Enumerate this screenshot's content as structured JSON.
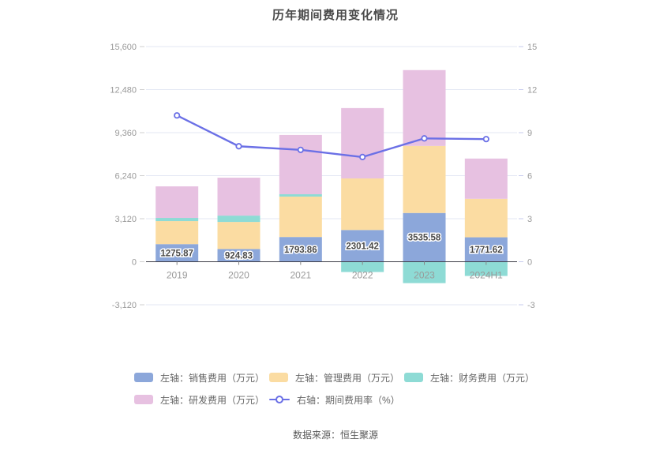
{
  "title": "历年期间费用变化情况",
  "source": "数据来源：恒生聚源",
  "colors": {
    "sales_bar": "#8ca7da",
    "admin_bar": "#fbdca2",
    "finance_bar": "#8edbd5",
    "rnd_bar": "#e7c1e1",
    "rate_line": "#6b70e6",
    "grid_line": "#e3e7f3",
    "zero_axis": "#3d3d47",
    "axis_text": "#999999",
    "bar_label_text": "#4a4a4a",
    "title_text": "#4a4a4a",
    "legend_text": "#666666",
    "footer_text": "#595959"
  },
  "chart_data": {
    "type": "bar",
    "title": "历年期间费用变化情况",
    "categories": [
      "2019",
      "2020",
      "2021",
      "2022",
      "2023",
      "2024H1"
    ],
    "series": [
      {
        "name": "左轴：销售费用（万元）",
        "kind": "bar",
        "color": "#8ca7da",
        "show_label": true,
        "values": [
          1275.87,
          924.83,
          1793.86,
          2301.42,
          3535.58,
          1771.62
        ]
      },
      {
        "name": "左轴：管理费用（万元）",
        "kind": "bar",
        "color": "#fbdca2",
        "show_label": false,
        "values": [
          1670,
          1960,
          2930,
          3740,
          4860,
          2790
        ]
      },
      {
        "name": "左轴：财务费用（万元）",
        "kind": "bar",
        "color": "#8edbd5",
        "show_label": false,
        "values": [
          230,
          460,
          170,
          -745,
          -1550,
          -1030
        ]
      },
      {
        "name": "左轴：研发费用（万元）",
        "kind": "bar",
        "color": "#e7c1e1",
        "show_label": false,
        "values": [
          2290,
          2750,
          4300,
          5100,
          5500,
          2920
        ]
      },
      {
        "name": "右轴：期间费用率（%）",
        "kind": "line",
        "color": "#6b70e6",
        "show_label": false,
        "values": [
          10.2,
          8.05,
          7.8,
          7.3,
          8.6,
          8.55
        ]
      }
    ],
    "bar_labels": [
      "1275.87",
      "924.83",
      "1793.86",
      "2301.42",
      "3535.58",
      "1771.62"
    ],
    "left_axis": {
      "ticks": [
        "15,600",
        "12,480",
        "9,360",
        "6,240",
        "3,120",
        "0",
        "-3,120"
      ],
      "max": 15600,
      "min": -3120,
      "step": 3120
    },
    "right_axis": {
      "ticks": [
        "15",
        "12",
        "9",
        "6",
        "3",
        "0",
        "-3"
      ],
      "max": 15,
      "min": -3,
      "step": 3
    },
    "grid": true,
    "legend_position": "bottom",
    "xlabel": "",
    "ylabel_left": "万元",
    "ylabel_right": "%"
  }
}
